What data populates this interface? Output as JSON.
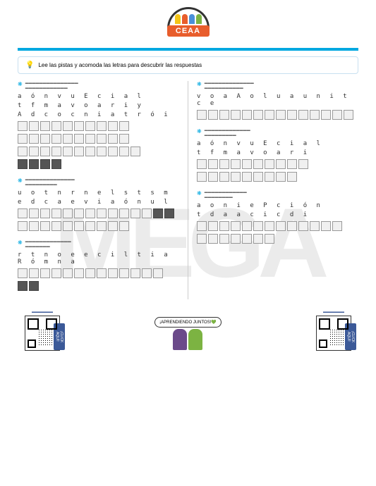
{
  "logo": {
    "text": "CEAA",
    "band_color": "#e85d2c",
    "kid_colors": [
      "#f5c518",
      "#e85d2c",
      "#4a90d9",
      "#7cb342"
    ]
  },
  "header": {
    "left": "",
    "right": ""
  },
  "bar_color": "#00a8e0",
  "instruction": "Lee las pistas y acomoda las letras para descubrir las respuestas",
  "questions": {
    "q1": {
      "letters_l1": "a ó n v u E c i a l",
      "letters_l2": "t f m a v o a r i y",
      "letters_l3": "A d c o c n i a t r ó i",
      "box_rows": [
        10,
        9,
        1,
        11,
        4
      ],
      "dark_rows": [
        0,
        0,
        0,
        0,
        1
      ]
    },
    "q2": {
      "letters_l1": "u o t n r n e l s t s m",
      "letters_l2": "e d   c a e v i a ó n u l",
      "box_rows": [
        12,
        2,
        10
      ],
      "dark_rows": [
        0,
        1,
        0
      ]
    },
    "q3": {
      "letters": "r t n o e e c i l t i a R ó m n a",
      "box_rows": [
        13,
        2
      ],
      "dark_rows": [
        0,
        1
      ]
    },
    "q4": {
      "letters": "v o a A o l u a u n i t c e",
      "box_rows": [
        14
      ],
      "dark_rows": [
        0
      ]
    },
    "q5": {
      "letters_l1": "a ó n v u E c i a l",
      "letters_l2": "t f m a v o a r i",
      "box_rows": [
        10,
        9
      ],
      "dark_rows": [
        0,
        0
      ]
    },
    "q6": {
      "letters_l1": "a o n i e P c i ó n",
      "letters_l2": "t d a a c i c d i",
      "box_rows": [
        13,
        7
      ],
      "dark_rows": [
        0,
        0
      ]
    }
  },
  "footer": {
    "bubble": "¡APRENDIENDO JUNTOS!💚",
    "click": "¡CLICK AQUÍ!",
    "person_colors": [
      "#6b4a8a",
      "#7cb342"
    ]
  }
}
